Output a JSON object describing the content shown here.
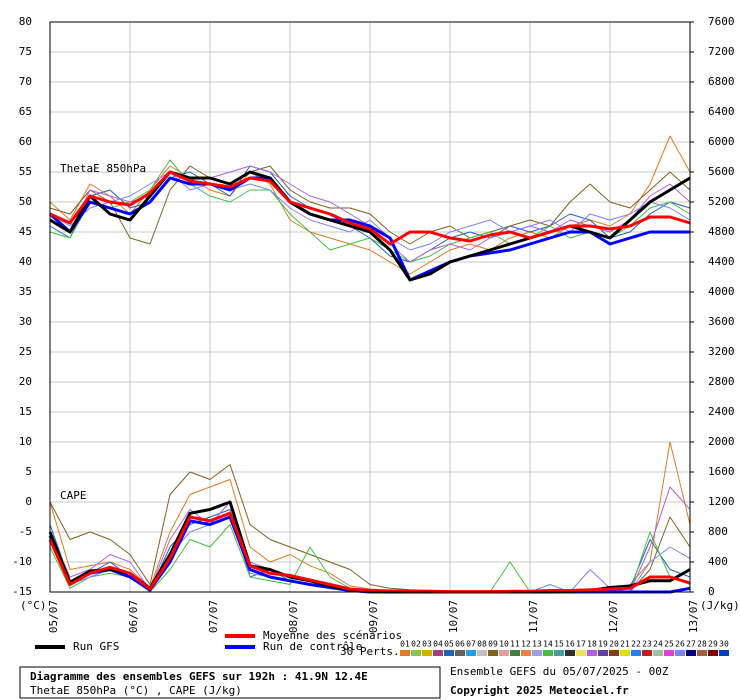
{
  "chart_data": {
    "type": "line",
    "labels": {
      "theta": "ThetaE 850hPa",
      "cape": "CAPE",
      "y_unit": "(°C)",
      "y2_unit": "(J/kg)"
    },
    "x": [
      0,
      6,
      12,
      18,
      24,
      30,
      36,
      42,
      48,
      54,
      60,
      66,
      72,
      78,
      84,
      90,
      96,
      102,
      108,
      114,
      120,
      126,
      132,
      138,
      144,
      150,
      156,
      162,
      168,
      174,
      180,
      186,
      192
    ],
    "xlim": [
      0,
      192
    ],
    "xticks": [
      {
        "value": 0,
        "label": "05/07"
      },
      {
        "value": 24,
        "label": "06/07"
      },
      {
        "value": 48,
        "label": "07/07"
      },
      {
        "value": 72,
        "label": "08/07"
      },
      {
        "value": 96,
        "label": "09/07"
      },
      {
        "value": 120,
        "label": "10/07"
      },
      {
        "value": 144,
        "label": "11/07"
      },
      {
        "value": 168,
        "label": "12/07"
      },
      {
        "value": 192,
        "label": "13/07"
      }
    ],
    "ylim": [
      -15,
      80
    ],
    "yticks": [
      80,
      75,
      70,
      65,
      60,
      55,
      50,
      45,
      40,
      35,
      30,
      25,
      20,
      15,
      10,
      5,
      0,
      -5,
      -10,
      -15
    ],
    "y2lim": [
      0,
      7600
    ],
    "y2ticks": [
      7600,
      7200,
      6800,
      6400,
      6000,
      5600,
      5200,
      4800,
      4400,
      4000,
      3600,
      3200,
      2800,
      2400,
      2000,
      1600,
      1200,
      800,
      400,
      0
    ],
    "grid": true,
    "series": [
      {
        "color": "#e07b20",
        "axis": "y",
        "values": [
          50,
          47,
          53,
          51,
          48,
          52,
          56,
          54,
          52,
          51,
          55,
          53,
          47,
          45,
          44,
          43,
          42,
          40,
          38,
          40,
          42,
          43,
          42,
          44,
          45,
          44,
          46,
          47,
          46,
          48,
          53,
          61,
          55
        ]
      },
      {
        "color": "#2060c0",
        "axis": "y",
        "values": [
          46,
          44,
          51,
          52,
          49,
          50,
          54,
          55,
          53,
          51,
          56,
          55,
          51,
          49,
          48,
          46,
          44,
          41,
          40,
          42,
          44,
          45,
          44,
          46,
          45,
          46,
          48,
          47,
          44,
          45,
          48,
          50,
          49
        ]
      },
      {
        "color": "#806020",
        "axis": "y",
        "values": [
          49,
          48,
          52,
          50,
          44,
          43,
          52,
          56,
          54,
          53,
          55,
          56,
          52,
          50,
          49,
          49,
          48,
          45,
          43,
          45,
          46,
          44,
          45,
          46,
          47,
          46,
          50,
          53,
          50,
          49,
          52,
          55,
          52
        ]
      },
      {
        "color": "#40c040",
        "axis": "y",
        "values": [
          45,
          44,
          50,
          49,
          50,
          52,
          57,
          53,
          51,
          50,
          52,
          52,
          48,
          45,
          42,
          43,
          44,
          42,
          40,
          41,
          43,
          44,
          45,
          43,
          44,
          46,
          44,
          45,
          44,
          46,
          49,
          50,
          48
        ]
      },
      {
        "color": "#b060e0",
        "axis": "y",
        "values": [
          47,
          45,
          52,
          51,
          50,
          51,
          55,
          54,
          54,
          55,
          56,
          55,
          53,
          51,
          50,
          48,
          46,
          43,
          40,
          42,
          43,
          42,
          44,
          45,
          46,
          45,
          47,
          46,
          45,
          47,
          51,
          53,
          50
        ]
      },
      {
        "color": "#8080ff",
        "axis": "y",
        "values": [
          48,
          46,
          49,
          50,
          51,
          53,
          55,
          52,
          53,
          52,
          53,
          52,
          49,
          47,
          46,
          45,
          47,
          44,
          42,
          43,
          45,
          46,
          47,
          45,
          46,
          47,
          45,
          48,
          47,
          48,
          50,
          49,
          47
        ]
      },
      {
        "color": "#e07b20",
        "axis": "y2",
        "values": [
          1200,
          300,
          350,
          400,
          300,
          60,
          800,
          1300,
          1400,
          1500,
          600,
          400,
          500,
          350,
          250,
          80,
          40,
          20,
          10,
          0,
          0,
          0,
          0,
          0,
          0,
          0,
          0,
          0,
          0,
          100,
          400,
          2000,
          900
        ]
      },
      {
        "color": "#2060c0",
        "axis": "y2",
        "values": [
          900,
          150,
          250,
          400,
          200,
          20,
          600,
          900,
          1000,
          1100,
          200,
          300,
          150,
          100,
          60,
          20,
          0,
          0,
          0,
          0,
          0,
          0,
          0,
          0,
          0,
          0,
          0,
          0,
          0,
          50,
          700,
          300,
          200
        ]
      },
      {
        "color": "#806020",
        "axis": "y2",
        "values": [
          1200,
          700,
          800,
          700,
          500,
          100,
          1300,
          1600,
          1500,
          1700,
          900,
          700,
          600,
          500,
          400,
          300,
          100,
          50,
          30,
          20,
          10,
          0,
          0,
          0,
          0,
          0,
          0,
          0,
          0,
          0,
          300,
          1000,
          600
        ]
      },
      {
        "color": "#40c040",
        "axis": "y2",
        "values": [
          600,
          50,
          200,
          250,
          200,
          0,
          300,
          700,
          600,
          900,
          200,
          150,
          100,
          600,
          200,
          50,
          0,
          0,
          0,
          0,
          0,
          0,
          0,
          400,
          0,
          0,
          0,
          0,
          0,
          0,
          800,
          200,
          100
        ]
      },
      {
        "color": "#b060e0",
        "axis": "y2",
        "values": [
          800,
          200,
          300,
          500,
          400,
          30,
          700,
          1100,
          900,
          1200,
          400,
          300,
          200,
          150,
          100,
          50,
          20,
          0,
          0,
          0,
          0,
          0,
          0,
          0,
          0,
          0,
          0,
          0,
          0,
          0,
          600,
          1400,
          1100
        ]
      },
      {
        "color": "#8080ff",
        "axis": "y2",
        "values": [
          700,
          100,
          200,
          300,
          250,
          10,
          500,
          800,
          900,
          1000,
          250,
          200,
          150,
          100,
          50,
          10,
          0,
          0,
          0,
          0,
          0,
          0,
          0,
          0,
          0,
          100,
          0,
          300,
          50,
          0,
          400,
          600,
          450
        ]
      },
      {
        "name": "Run de contrôle",
        "color": "#0000ff",
        "axis": "y",
        "values": [
          48,
          45,
          50,
          49,
          48,
          50,
          54,
          53,
          53,
          52,
          54,
          54,
          50,
          48,
          47,
          47,
          46,
          44,
          37,
          38.5,
          40,
          41,
          41.5,
          42,
          43,
          44,
          45,
          45,
          43,
          44,
          45,
          45,
          45
        ]
      },
      {
        "color": "#0000ff",
        "axis": "y2",
        "values": [
          750,
          120,
          250,
          300,
          200,
          30,
          400,
          950,
          900,
          1000,
          300,
          200,
          150,
          100,
          60,
          20,
          0,
          0,
          0,
          0,
          0,
          0,
          0,
          0,
          0,
          0,
          0,
          0,
          0,
          0,
          0,
          0,
          50
        ]
      },
      {
        "name": "Run GFS",
        "color": "#000000",
        "axis": "y",
        "values": [
          47,
          45,
          51,
          48,
          47,
          51,
          55,
          54,
          54,
          53,
          55,
          54,
          50,
          48,
          47,
          46,
          45,
          42,
          37,
          38,
          40,
          41,
          42,
          43,
          44,
          45,
          46,
          45,
          44,
          47,
          50,
          52,
          54
        ]
      },
      {
        "color": "#000000",
        "axis": "y2",
        "values": [
          800,
          130,
          280,
          300,
          250,
          50,
          500,
          1050,
          1100,
          1200,
          350,
          300,
          200,
          150,
          80,
          30,
          10,
          0,
          0,
          0,
          0,
          0,
          0,
          0,
          0,
          0,
          10,
          20,
          60,
          80,
          150,
          150,
          300
        ]
      },
      {
        "name": "Moyenne des scénarios",
        "color": "#ff0000",
        "axis": "y",
        "values": [
          48,
          46.5,
          51,
          50,
          49.5,
          51.5,
          55,
          53.5,
          53,
          52.5,
          54,
          53.5,
          50,
          49,
          48,
          46.5,
          45.5,
          43,
          45,
          45,
          44,
          43.5,
          44.5,
          45,
          44,
          45,
          46,
          46,
          45.5,
          46,
          47.5,
          47.5,
          46.5
        ]
      },
      {
        "color": "#ff0000",
        "axis": "y2",
        "values": [
          700,
          100,
          250,
          330,
          250,
          40,
          450,
          1000,
          950,
          1050,
          350,
          250,
          220,
          160,
          100,
          40,
          20,
          15,
          10,
          10,
          5,
          5,
          5,
          10,
          10,
          20,
          20,
          30,
          40,
          50,
          200,
          200,
          120
        ]
      }
    ],
    "perturbations_label": "30 Perts.",
    "perturbations": [
      {
        "name": "01",
        "color": "#e07b20"
      },
      {
        "name": "02",
        "color": "#90c050"
      },
      {
        "name": "03",
        "color": "#d0b000"
      },
      {
        "name": "04",
        "color": "#a04080"
      },
      {
        "name": "05",
        "color": "#2060c0"
      },
      {
        "name": "06",
        "color": "#606060"
      },
      {
        "name": "07",
        "color": "#20a0e0"
      },
      {
        "name": "08",
        "color": "#c0c0c0"
      },
      {
        "name": "09",
        "color": "#806020"
      },
      {
        "name": "10",
        "color": "#e0a0a0"
      },
      {
        "name": "11",
        "color": "#408040"
      },
      {
        "name": "12",
        "color": "#f08040"
      },
      {
        "name": "13",
        "color": "#a0a0e0"
      },
      {
        "name": "14",
        "color": "#40c040"
      },
      {
        "name": "15",
        "color": "#40a0a0"
      },
      {
        "name": "16",
        "color": "#303030"
      },
      {
        "name": "17",
        "color": "#f0e060"
      },
      {
        "name": "18",
        "color": "#b060e0"
      },
      {
        "name": "19",
        "color": "#6040a0"
      },
      {
        "name": "20",
        "color": "#804000"
      },
      {
        "name": "21",
        "color": "#e0e000"
      },
      {
        "name": "22",
        "color": "#2080ff"
      },
      {
        "name": "23",
        "color": "#c02020"
      },
      {
        "name": "24",
        "color": "#a0c0a0"
      },
      {
        "name": "25",
        "color": "#e040e0"
      },
      {
        "name": "26",
        "color": "#8080ff"
      },
      {
        "name": "27",
        "color": "#000080"
      },
      {
        "name": "28",
        "color": "#a06040"
      },
      {
        "name": "29",
        "color": "#800000"
      },
      {
        "name": "30",
        "color": "#0040c0"
      }
    ],
    "footer": {
      "title": "Diagramme des ensembles GEFS sur 192h : 41.9N 12.4E",
      "subtitle": "ThetaE 850hPa (°C) , CAPE (J/kg)",
      "run": "Ensemble GEFS du 05/07/2025 - 00Z",
      "copyright": "Copyright 2025 Meteociel.fr"
    }
  }
}
